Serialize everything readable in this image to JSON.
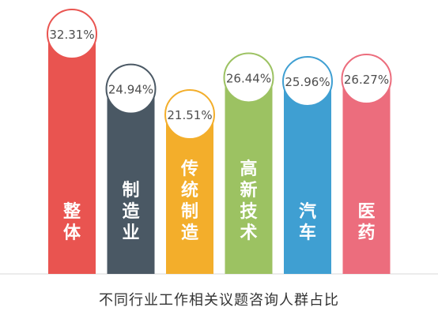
{
  "chart_data": {
    "type": "bar",
    "title": "不同行业工作相关议题咨询人群占比",
    "categories": [
      "整体",
      "制造业",
      "传统制造",
      "高新技术",
      "汽车",
      "医药"
    ],
    "values": [
      32.31,
      24.94,
      21.51,
      26.44,
      25.96,
      26.27
    ],
    "value_labels": [
      "32.31%",
      "24.94%",
      "21.51%",
      "26.44%",
      "25.96%",
      "26.27%"
    ],
    "unit": "%",
    "colors": [
      "#e95450",
      "#4a5864",
      "#f3ae2b",
      "#9cc262",
      "#3f9fd2",
      "#ec6d7d"
    ],
    "grid": false,
    "legend": "none"
  }
}
